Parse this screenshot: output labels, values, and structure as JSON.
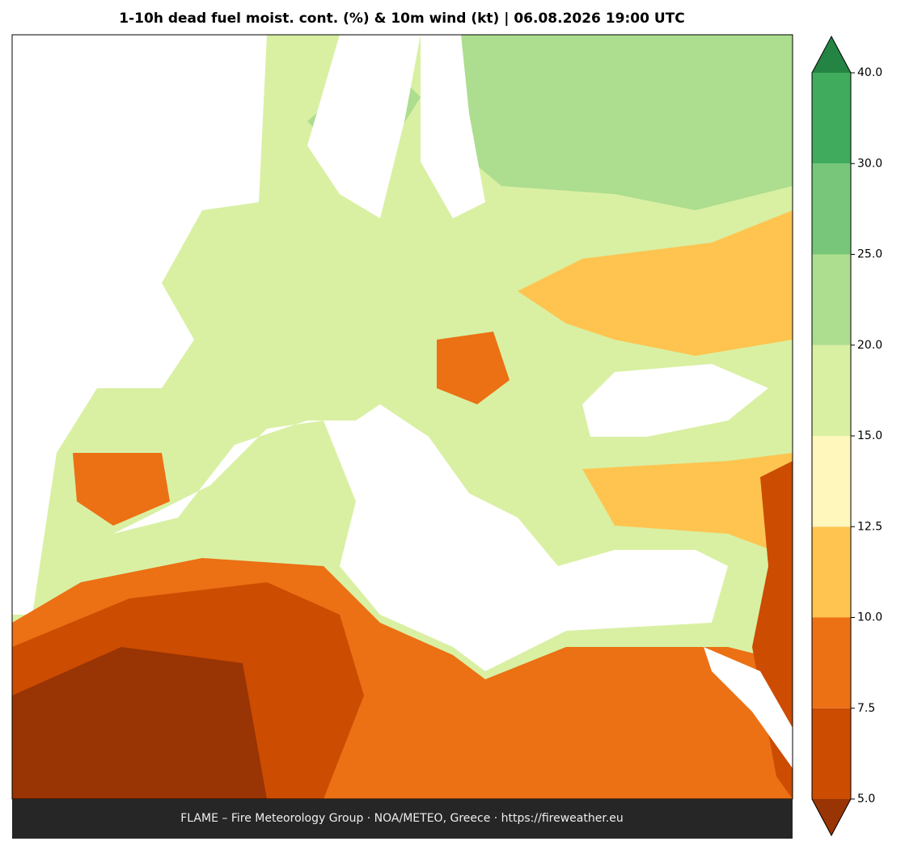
{
  "title": "1-10h dead fuel moist. cont. (%) & 10m wind (kt)  |  06.08.2026 19:00 UTC",
  "colorbar": {
    "ticks": [
      {
        "value": 5,
        "label": "5.0"
      },
      {
        "value": 7.5,
        "label": "7.5"
      },
      {
        "value": 10,
        "label": "10.0"
      },
      {
        "value": 12.5,
        "label": "12.5"
      },
      {
        "value": 15,
        "label": "15.0"
      },
      {
        "value": 20,
        "label": "20.0"
      },
      {
        "value": 25,
        "label": "25.0"
      },
      {
        "value": 30,
        "label": "30.0"
      },
      {
        "value": 40,
        "label": "40.0"
      }
    ],
    "colors": [
      "#cc4c02",
      "#ec7014",
      "#fec44f",
      "#fff7bc",
      "#d9f0a3",
      "#addd8e",
      "#78c679",
      "#41ab5d"
    ],
    "under_color": "#993404",
    "over_color": "#238443"
  },
  "footer": "FLAME – Fire Meteorology Group · NOA/METEO, Greece · https://fireweather.eu"
}
